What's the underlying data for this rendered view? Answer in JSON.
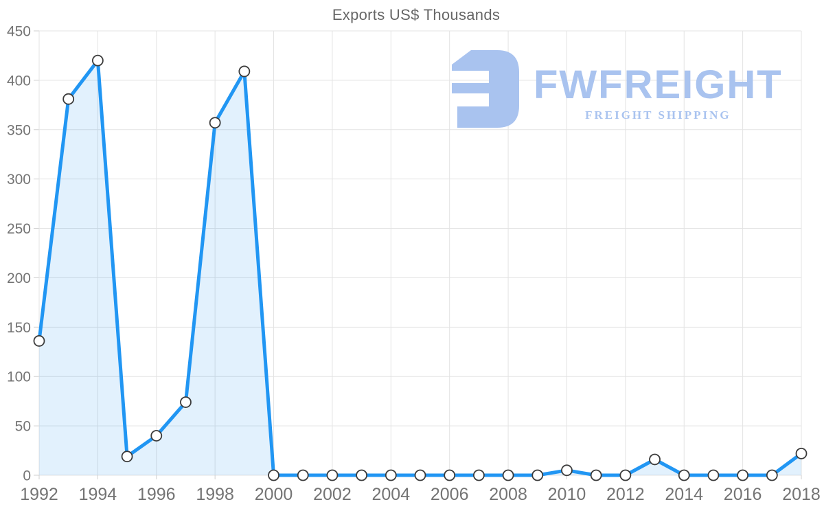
{
  "chart_data": {
    "type": "area",
    "title": "Exports US$ Thousands",
    "series_name": "Exports",
    "x": [
      1992,
      1993,
      1994,
      1995,
      1996,
      1997,
      1998,
      1999,
      2000,
      2001,
      2002,
      2003,
      2004,
      2005,
      2006,
      2007,
      2008,
      2009,
      2010,
      2011,
      2012,
      2013,
      2014,
      2015,
      2016,
      2017,
      2018
    ],
    "values": [
      136,
      381,
      420,
      19,
      40,
      74,
      357,
      409,
      0,
      0,
      0,
      0,
      0,
      0,
      0,
      0,
      0,
      0,
      5,
      0,
      0,
      16,
      0,
      0,
      0,
      0,
      22
    ],
    "xlabel": "",
    "ylabel": "",
    "ylim": [
      0,
      450
    ],
    "ytick_step": 50,
    "xtick_step": 2,
    "grid": true,
    "legend": false,
    "markers": true
  },
  "logo": {
    "wordmark": "FWFREIGHT",
    "tagline": "FREIGHT SHIPPING"
  },
  "colors": {
    "line": "#2196F3",
    "fill": "#2196F3",
    "fill_opacity": 0.13,
    "marker_fill": "#FFFFFF",
    "marker_stroke": "#3B3B3B",
    "grid": "#E3E3E3",
    "tick": "#CFCFCF",
    "axis_text": "#747474",
    "title_text": "#666666",
    "logo": "#A9C3EF"
  }
}
